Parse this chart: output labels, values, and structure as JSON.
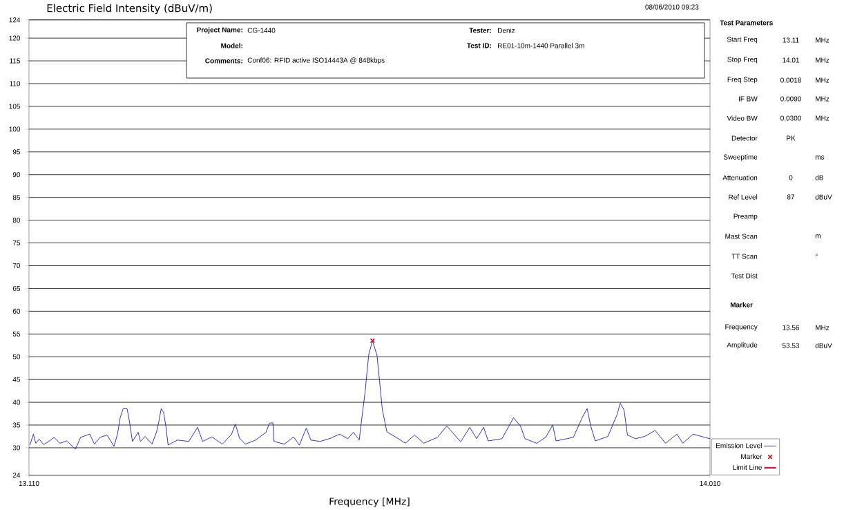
{
  "chart_data": {
    "type": "line",
    "title": "Electric Field Intensity (dBuV/m)",
    "xlabel": "Frequency [MHz]",
    "xlim": [
      13.11,
      14.01
    ],
    "xticks": [
      {
        "value": 13.11,
        "label": "13.110"
      },
      {
        "value": 14.01,
        "label": "14.010"
      }
    ],
    "ylim": [
      24,
      124
    ],
    "yticks": [
      24,
      30,
      35,
      40,
      45,
      50,
      55,
      60,
      65,
      70,
      75,
      80,
      85,
      90,
      95,
      100,
      105,
      110,
      115,
      120,
      124
    ],
    "grid": "y",
    "legend": "bottom right",
    "series": [
      {
        "name": "Emission Level",
        "color": "#1a1ad0",
        "x": [
          13.1112,
          13.1158,
          13.1189,
          13.1234,
          13.1294,
          13.1386,
          13.1431,
          13.1508,
          13.1599,
          13.1714,
          13.1782,
          13.1903,
          13.1965,
          13.204,
          13.2132,
          13.2223,
          13.2269,
          13.2305,
          13.2344,
          13.2396,
          13.2427,
          13.2467,
          13.2543,
          13.2573,
          13.2634,
          13.2725,
          13.2786,
          13.2816,
          13.2847,
          13.2878,
          13.2908,
          13.2938,
          13.306,
          13.3212,
          13.3328,
          13.3394,
          13.3517,
          13.3654,
          13.3775,
          13.3827,
          13.3882,
          13.3958,
          13.4095,
          13.4232,
          13.4277,
          13.4323,
          13.4338,
          13.4475,
          13.4597,
          13.4673,
          13.4764,
          13.4825,
          13.4946,
          13.5069,
          13.5206,
          13.5312,
          13.5388,
          13.5464,
          13.549,
          13.554,
          13.559,
          13.564,
          13.57,
          13.577,
          13.583,
          13.5982,
          13.6073,
          13.6195,
          13.6316,
          13.6499,
          13.6621,
          13.6804,
          13.6925,
          13.7016,
          13.7108,
          13.7169,
          13.7351,
          13.7503,
          13.7594,
          13.7655,
          13.7808,
          13.7929,
          13.8021,
          13.8066,
          13.8294,
          13.8416,
          13.8477,
          13.8523,
          13.8584,
          13.8751,
          13.8872,
          13.8913,
          13.8964,
          13.9009,
          13.9116,
          13.9238,
          13.9375,
          13.9512,
          13.9664,
          13.974,
          13.9877,
          14.0029,
          14.01
        ],
        "values": [
          30.6,
          33.0,
          31.0,
          31.9,
          30.7,
          31.7,
          32.3,
          31.0,
          31.5,
          29.7,
          32.3,
          33.0,
          30.8,
          32.3,
          32.8,
          30.3,
          33.0,
          36.6,
          38.6,
          38.6,
          35.8,
          31.4,
          33.4,
          31.4,
          32.5,
          30.8,
          33.5,
          35.8,
          38.6,
          37.8,
          34.8,
          30.6,
          31.7,
          31.4,
          34.5,
          31.4,
          32.4,
          30.8,
          32.9,
          35.2,
          32.1,
          30.8,
          31.7,
          33.4,
          35.4,
          35.5,
          31.4,
          30.8,
          32.4,
          30.6,
          34.3,
          31.7,
          31.4,
          32.0,
          33.0,
          32.0,
          33.4,
          31.7,
          35.4,
          42.0,
          50.5,
          53.5,
          50.2,
          38.3,
          33.5,
          32.0,
          31.0,
          32.8,
          31.0,
          32.3,
          34.8,
          31.3,
          34.5,
          32.0,
          34.5,
          31.5,
          32.0,
          36.6,
          34.8,
          32.0,
          31.0,
          32.3,
          35.0,
          31.5,
          32.3,
          36.8,
          38.6,
          34.8,
          31.5,
          32.5,
          37.3,
          39.8,
          38.3,
          32.8,
          32.0,
          32.5,
          33.8,
          31.0,
          33.0,
          31.0,
          33.0,
          32.3,
          32.0
        ]
      },
      {
        "name": "Marker",
        "type": "scatter",
        "marker": "cross",
        "color": "#d01010",
        "x": [
          13.564
        ],
        "values": [
          53.53
        ]
      },
      {
        "name": "Limit Line",
        "type": "line",
        "color": "#e0103a"
      }
    ],
    "annotations": [
      "08/06/2010  09:23",
      "Project Name:",
      "CG-1440",
      "Tester:",
      "Deniz",
      "Model:",
      "Test ID:",
      "RE01-10m-1440 Parallel 3m",
      "Comments:",
      "Conf06: RFID active ISO14443A @ 848kbps",
      "Test Parameters",
      "Start Freq",
      "13.11",
      "MHz",
      "Stop Freq",
      "14.01",
      "MHz",
      "Freq Step",
      "0.0018",
      "MHz",
      "IF BW",
      "0.0090",
      "MHz",
      "Video BW",
      "0.0300",
      "MHz",
      "Detector",
      "PK",
      "Sweeptime",
      "ms",
      "Attenuation",
      "0",
      "dB",
      "Ref Level",
      "87",
      "dBuV",
      "Preamp",
      "Mast Scan",
      "m",
      "TT Scan",
      "°",
      "Test Dist",
      "Marker",
      "Frequency",
      "13.56",
      "MHz",
      "Amplitude",
      "53.53",
      "dBuV"
    ]
  }
}
